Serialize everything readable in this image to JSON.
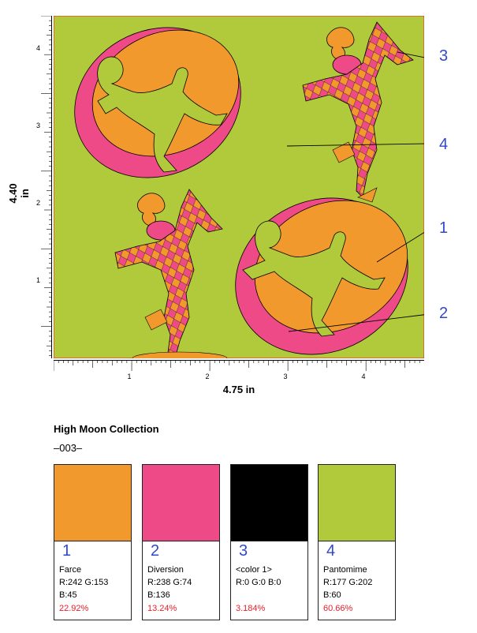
{
  "dimensions": {
    "height_label": "4.40 in",
    "width_label": "4.75 in"
  },
  "ruler": {
    "vertical_labels": [
      "4",
      "3",
      "2",
      "1"
    ],
    "horizontal_labels": [
      "1",
      "2",
      "3",
      "4"
    ]
  },
  "callouts": [
    "1",
    "2",
    "3",
    "4"
  ],
  "collection": {
    "title": "High Moon Collection",
    "number": "–003–"
  },
  "colors": {
    "orange": "#F2992D",
    "pink": "#EE4A88",
    "black": "#000000",
    "green": "#B1CA3C",
    "callout_blue": "#3049C8",
    "percent_red": "#E5202A"
  },
  "swatches": [
    {
      "number": "1",
      "name": "Farce",
      "rgb_line1": "R:242  G:153",
      "rgb_line2": "B:45",
      "percent": "22.92%",
      "color": "#F2992D"
    },
    {
      "number": "2",
      "name": "Diversion",
      "rgb_line1": "R:238  G:74",
      "rgb_line2": "B:136",
      "percent": "13.24%",
      "color": "#EE4A88"
    },
    {
      "number": "3",
      "name": "<color 1>",
      "rgb_line1": "R:0  G:0  B:0",
      "rgb_line2": "",
      "percent": "3.184%",
      "color": "#000000"
    },
    {
      "number": "4",
      "name": "Pantomime",
      "rgb_line1": "R:177  G:202",
      "rgb_line2": "B:60",
      "percent": "60.66%",
      "color": "#B1CA3C"
    }
  ]
}
